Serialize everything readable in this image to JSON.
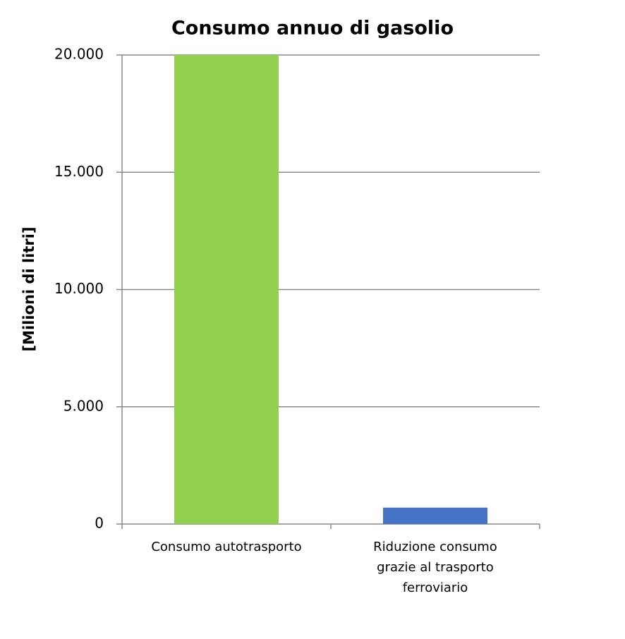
{
  "chart_data": {
    "type": "bar",
    "title": "Consumo annuo di gasolio",
    "y_label": "[Milioni di litri]",
    "categories": [
      "Consumo autotrasporto",
      "Riduzione consumo grazie al trasporto ferroviario"
    ],
    "values": [
      20000,
      700
    ],
    "colors": [
      "#92d050",
      "#4472c4"
    ],
    "ylim": [
      0,
      20000
    ],
    "yticks": [
      0,
      {
        "value": 5000,
        "label": "5.000"
      },
      {
        "value": 10000,
        "label": "10.000"
      },
      {
        "value": 15000,
        "label": "15.000"
      },
      {
        "value": 20000,
        "label": "20.000"
      }
    ],
    "grid": true
  }
}
